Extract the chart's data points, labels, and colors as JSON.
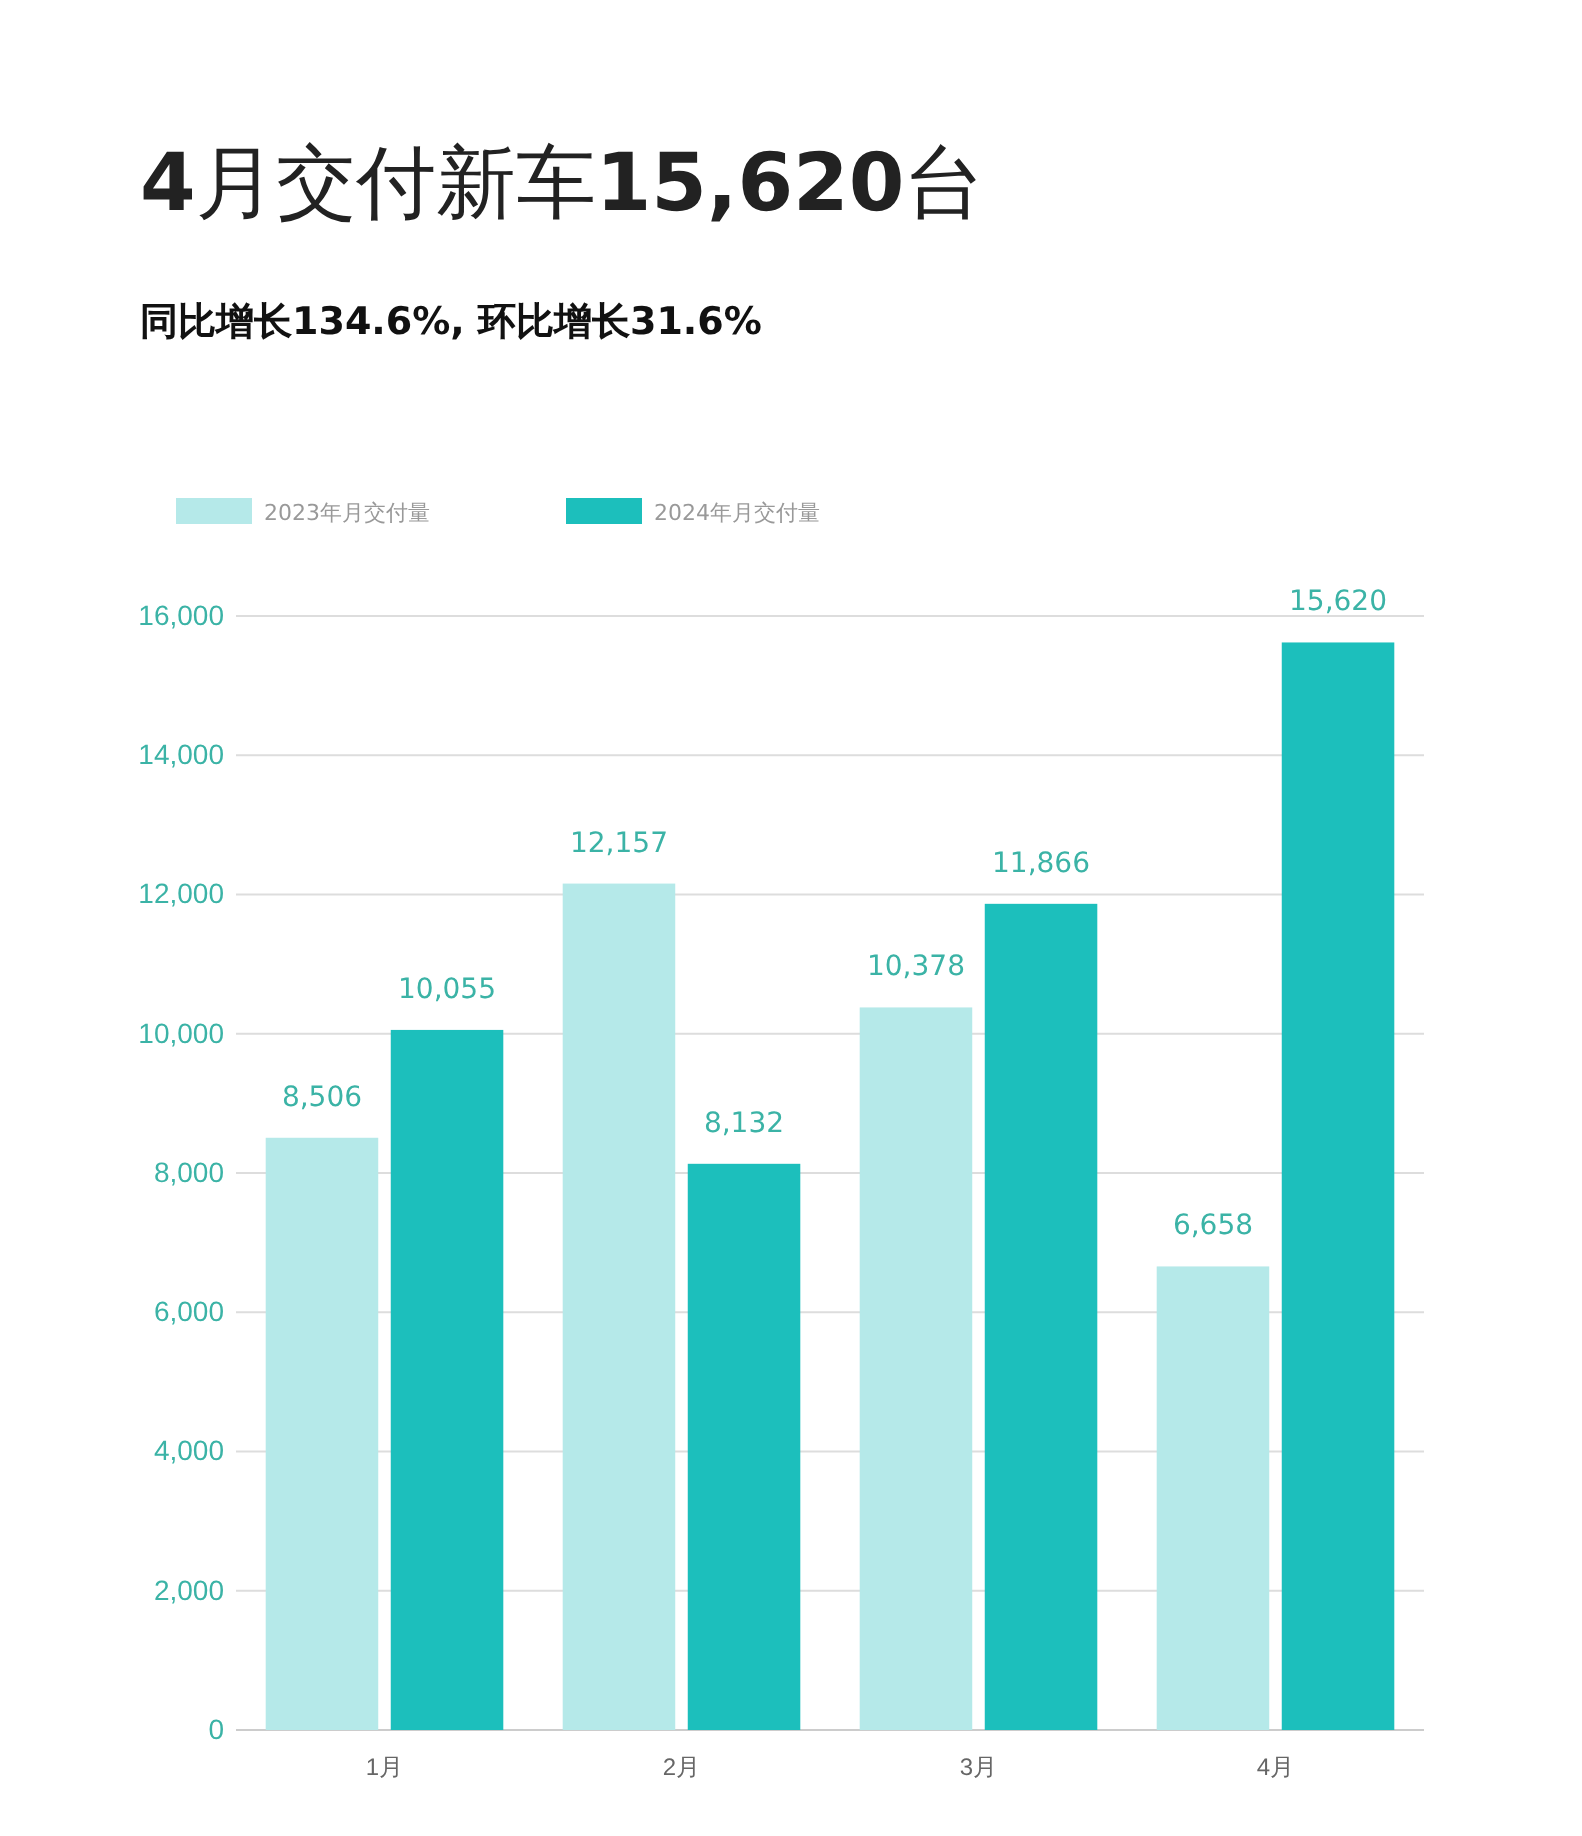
{
  "chart_data": {
    "type": "bar",
    "title": "4月交付新车15,620台",
    "subtitle": "同比增长134.6%, 环比增长31.6%",
    "categories": [
      "1月",
      "2月",
      "3月",
      "4月"
    ],
    "series": [
      {
        "name": "2023年月交付量",
        "color": "#b5e9e9",
        "values": [
          8506,
          12157,
          10378,
          6658
        ],
        "value_labels": [
          "8,506",
          "12,157",
          "10,378",
          "6,658"
        ]
      },
      {
        "name": "2024年月交付量",
        "color": "#1cbfbc",
        "values": [
          10055,
          8132,
          11866,
          15620
        ],
        "value_labels": [
          "10,055",
          "8,132",
          "11,866",
          "15,620"
        ]
      }
    ],
    "ylim": [
      0,
      16000
    ],
    "yticks": [
      {
        "value": 0,
        "label": "0"
      },
      {
        "value": 2000,
        "label": "2,000"
      },
      {
        "value": 4000,
        "label": "4,000"
      },
      {
        "value": 6000,
        "label": "6,000"
      },
      {
        "value": 8000,
        "label": "8,000"
      },
      {
        "value": 10000,
        "label": "10,000"
      },
      {
        "value": 12000,
        "label": "12,000"
      },
      {
        "value": 14000,
        "label": "14,000"
      },
      {
        "value": 16000,
        "label": "16,000"
      }
    ],
    "grid": "y",
    "legend": "top left"
  }
}
